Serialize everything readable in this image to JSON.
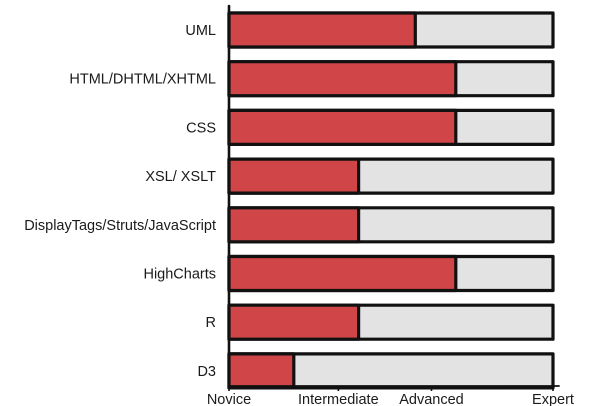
{
  "chart_data": {
    "type": "bar",
    "orientation": "horizontal",
    "categories": [
      "UML",
      "HTML/DHTML/XHTML",
      "CSS",
      "XSL/ XSLT",
      "DisplayTags/Struts/JavaScript",
      "HighCharts",
      "R",
      "D3"
    ],
    "values": [
      2.3,
      2.8,
      2.8,
      1.6,
      1.6,
      2.8,
      1.6,
      0.8
    ],
    "xlim": [
      0,
      4
    ],
    "xticks": [
      {
        "value": 0,
        "label": "Novice"
      },
      {
        "value": 1.35,
        "label": "Intermediate"
      },
      {
        "value": 2.5,
        "label": "Advanced"
      },
      {
        "value": 4,
        "label": "Expert"
      }
    ],
    "xlabel": "",
    "ylabel": "",
    "title": "",
    "grid": false,
    "legend": "none",
    "colors": {
      "fill": "#d04547",
      "track": "#e3e3e3",
      "outline": "#111111"
    }
  }
}
